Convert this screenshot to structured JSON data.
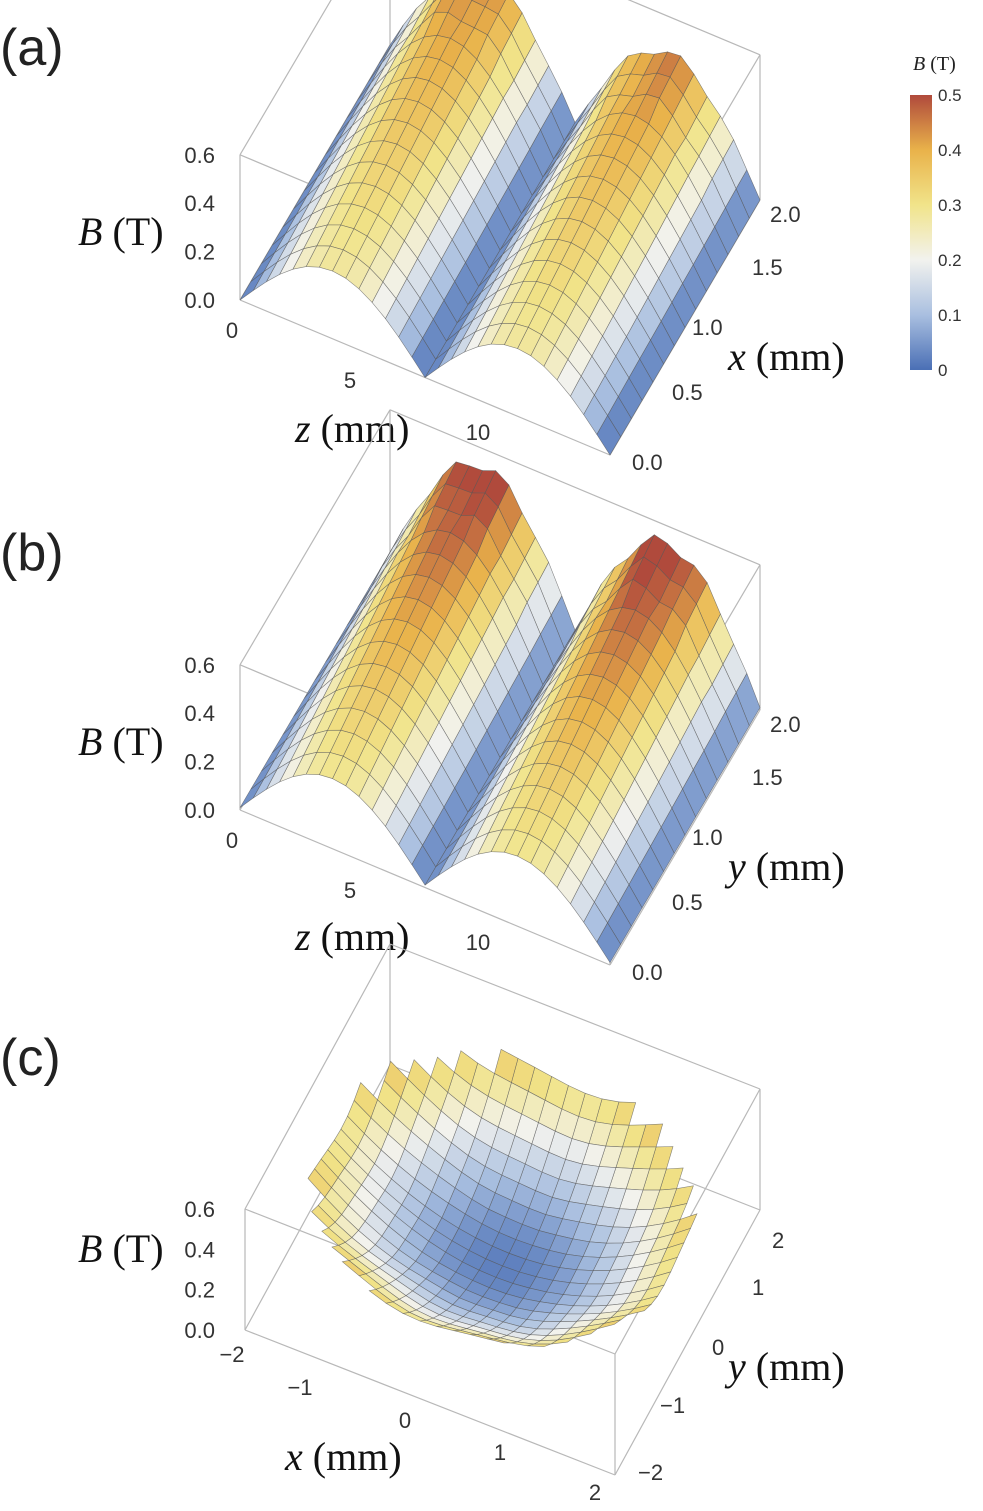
{
  "colorbar": {
    "title_var": "B",
    "title_unit": " (T)",
    "ticks": [
      "0.5",
      "0.4",
      "0.3",
      "0.2",
      "0.1",
      "0"
    ],
    "stops": [
      "#4a6fb5",
      "#a9bfe0",
      "#f2f2ee",
      "#f1e48a",
      "#e9b24a",
      "#b04a3c"
    ]
  },
  "chart_data": [
    {
      "type": "surface3d",
      "panel_label": "(a)",
      "zlabel_var": "B",
      "zlabel_unit": " (T)",
      "xlabel_var": "z",
      "xlabel_unit": " (mm)",
      "ylabel_var": "x",
      "ylabel_unit": " (mm)",
      "zticks": [
        "0.0",
        "0.2",
        "0.4",
        "0.6"
      ],
      "xticks": [
        "0",
        "5",
        "10"
      ],
      "yticks": [
        "0.0",
        "0.5",
        "1.0",
        "1.5",
        "2.0"
      ],
      "xlim": [
        0,
        14
      ],
      "ylim": [
        0,
        2
      ],
      "zlim": [
        0,
        0.6
      ],
      "description_values": {
        "peak_B": 0.45,
        "period_mm": 7.0,
        "B_at_x0_peak": 0.28
      }
    },
    {
      "type": "surface3d",
      "panel_label": "(b)",
      "zlabel_var": "B",
      "zlabel_unit": " (T)",
      "xlabel_var": "z",
      "xlabel_unit": " (mm)",
      "ylabel_var": "y",
      "ylabel_unit": " (mm)",
      "zticks": [
        "0.0",
        "0.2",
        "0.4",
        "0.6"
      ],
      "xticks": [
        "0",
        "5",
        "10"
      ],
      "yticks": [
        "0.0",
        "0.5",
        "1.0",
        "1.5",
        "2.0"
      ],
      "xlim": [
        0,
        14
      ],
      "ylim": [
        0,
        2
      ],
      "zlim": [
        0,
        0.6
      ],
      "description_values": {
        "peak_B": 0.52,
        "period_mm": 7.0,
        "B_at_y0_peak": 0.28
      }
    },
    {
      "type": "surface3d",
      "panel_label": "(c)",
      "zlabel_var": "B",
      "zlabel_unit": " (T)",
      "xlabel_var": "x",
      "xlabel_unit": " (mm)",
      "ylabel_var": "y",
      "ylabel_unit": " (mm)",
      "zticks": [
        "0.0",
        "0.2",
        "0.4",
        "0.6"
      ],
      "xticks": [
        "−2",
        "−1",
        "0",
        "1",
        "2"
      ],
      "yticks": [
        "−2",
        "−1",
        "0",
        "1",
        "2"
      ],
      "xlim": [
        -2,
        2
      ],
      "ylim": [
        -2,
        2
      ],
      "zlim": [
        0,
        0.6
      ],
      "description_values": {
        "center_B": 0.02,
        "edge_B": 0.38,
        "domain_radius_mm": 2.0
      }
    }
  ]
}
